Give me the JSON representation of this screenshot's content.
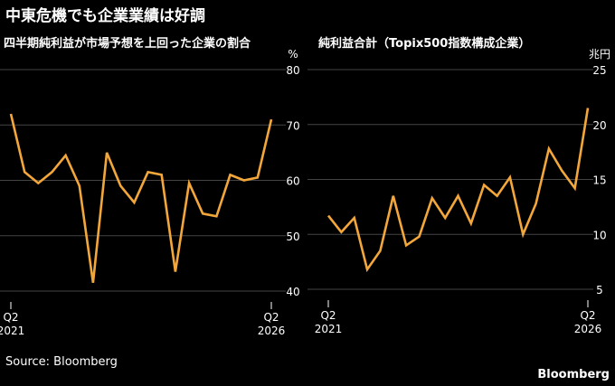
{
  "headline": "中東危機でも企業業績は好調",
  "source": "Source: Bloomberg",
  "brand": "Bloomberg",
  "colors": {
    "background": "#000000",
    "line": "#f3a73b",
    "grid": "#444444",
    "text": "#ffffff"
  },
  "chart_data": [
    {
      "type": "line",
      "title": "四半期純利益が市場予想を上回った企業の割合",
      "unit": "%",
      "ylim": [
        40,
        80
      ],
      "yticks": [
        40,
        50,
        60,
        70,
        80
      ],
      "grid": true,
      "x_ticks": [
        {
          "line1": "Q2",
          "line2": "2021"
        },
        {
          "line1": "Q2",
          "line2": "2026"
        }
      ],
      "series": [
        {
          "values": [
            72,
            61.5,
            59.5,
            61.5,
            64.5,
            59,
            41.5,
            65,
            59,
            56,
            61.5,
            61,
            43.5,
            59.5,
            54,
            53.5,
            61,
            60,
            60.5,
            71
          ]
        }
      ]
    },
    {
      "type": "line",
      "title": "純利益合計（Topix500指数構成企業）",
      "unit": "兆円",
      "ylim": [
        5,
        25
      ],
      "yticks": [
        5,
        10,
        15,
        20,
        25
      ],
      "grid": true,
      "x_ticks": [
        {
          "line1": "Q2",
          "line2": "2021"
        },
        {
          "line1": "Q2",
          "line2": "2026"
        }
      ],
      "series": [
        {
          "values": [
            11.7,
            10.2,
            11.5,
            6.8,
            8.5,
            13.5,
            9.0,
            9.8,
            13.3,
            11.5,
            13.5,
            11.0,
            14.5,
            13.5,
            15.2,
            10.0,
            12.8,
            17.8,
            15.8,
            14.2,
            21.5
          ]
        }
      ]
    }
  ]
}
